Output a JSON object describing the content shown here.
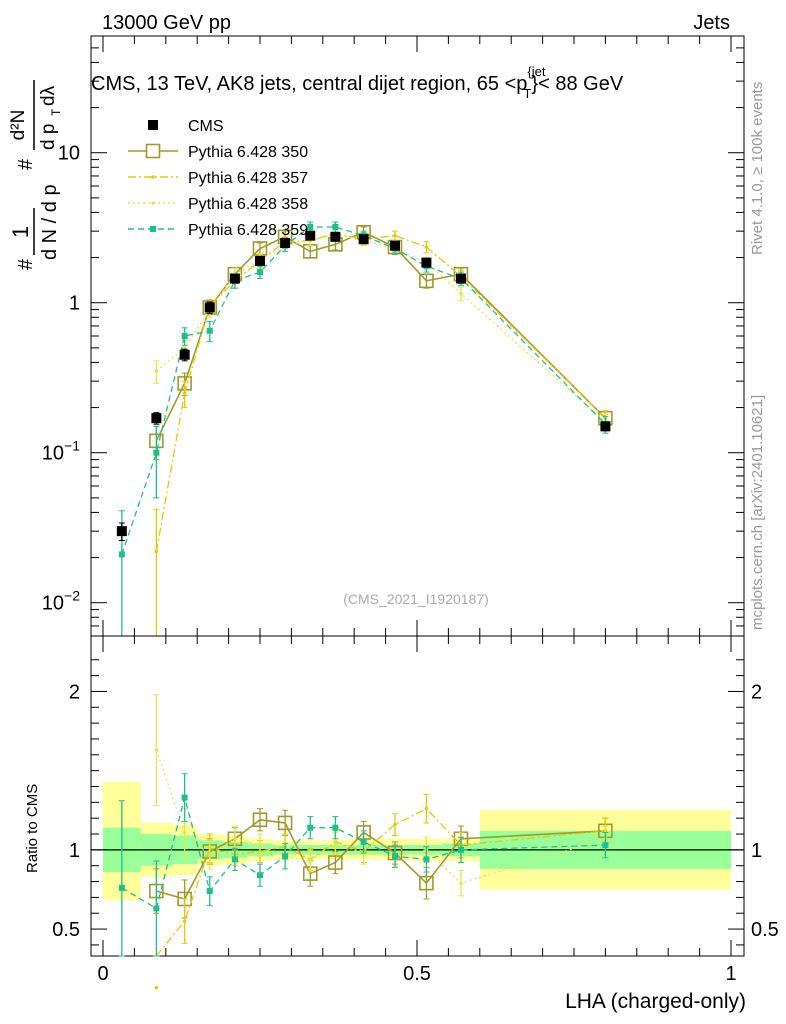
{
  "header": {
    "left": "13000 GeV pp",
    "right": "Jets",
    "title": "CMS, 13 TeV, AK8 jets, central dijet region, 65 <p",
    "title_sup": "{jet",
    "title_sub": "T",
    "title_end": "}< 88 GeV",
    "watermark": "(CMS_2021_I1920187)",
    "side_rivet": "Rivet 4.1.0, ≥ 100k events",
    "side_mcplots": "mcplots.cern.ch [arXiv:2401.10621]"
  },
  "colors": {
    "cms": "#000000",
    "p350": "#a09a2c",
    "p357": "#e8c800",
    "p358": "#e5e54b",
    "p359": "#1ec08a",
    "band_inner": "#99ff99",
    "band_outer": "#ffff99"
  },
  "chart_data": [
    {
      "type": "line",
      "panel": "main",
      "yscale": "log",
      "ylim": [
        0.006,
        60
      ],
      "xlim": [
        0,
        1
      ],
      "ylabel": "1/dN/dp_T  dN/dp_T dλ (d²N / dp_T dλ)",
      "ylabel_parts": {
        "one": "1",
        "num": "d²N",
        "dn": "d N / d p",
        "dp": "d p",
        "dl": "dλ",
        "t": "T",
        "hash": "#"
      },
      "yticks": [
        {
          "value": 0.01,
          "base": "10",
          "exp": "−2"
        },
        {
          "value": 0.1,
          "base": "10",
          "exp": "−1"
        },
        {
          "value": 1,
          "base": "1",
          "exp": ""
        },
        {
          "value": 10,
          "base": "10",
          "exp": ""
        }
      ],
      "x": [
        0.03,
        0.085,
        0.13,
        0.17,
        0.21,
        0.25,
        0.29,
        0.33,
        0.37,
        0.415,
        0.465,
        0.515,
        0.57,
        0.8
      ],
      "series": [
        {
          "name": "CMS",
          "key": "cms",
          "style": "data",
          "values": [
            0.03,
            0.17,
            0.45,
            0.93,
            1.45,
            1.9,
            2.5,
            2.8,
            2.75,
            2.65,
            2.4,
            1.85,
            1.45,
            0.15
          ],
          "errors": [
            0.004,
            0.015,
            0.04,
            0.08,
            0.1,
            0.1,
            0.12,
            0.12,
            0.12,
            0.12,
            0.12,
            0.1,
            0.1,
            0.01
          ]
        },
        {
          "name": "Pythia 6.428 350",
          "key": "p350",
          "style": "solid-square",
          "values": [
            null,
            0.12,
            0.29,
            0.93,
            1.55,
            2.3,
            2.75,
            2.2,
            2.45,
            2.95,
            2.35,
            1.4,
            1.55,
            0.17
          ],
          "errors": [
            null,
            0.03,
            0.05,
            0.1,
            0.15,
            0.2,
            0.25,
            0.2,
            0.2,
            0.25,
            0.2,
            0.15,
            0.15,
            0.02
          ]
        },
        {
          "name": "Pythia 6.428 357",
          "key": "p357",
          "style": "dashdot",
          "values": [
            null,
            0.022,
            0.25,
            0.95,
            1.4,
            1.9,
            2.55,
            2.6,
            2.9,
            2.65,
            2.8,
            2.35,
            1.5,
            0.17
          ],
          "errors": [
            null,
            0.02,
            0.05,
            0.1,
            0.15,
            0.2,
            0.2,
            0.2,
            0.2,
            0.2,
            0.2,
            0.2,
            0.15,
            0.02
          ]
        },
        {
          "name": "Pythia 6.428 358",
          "key": "p358",
          "style": "dotted",
          "values": [
            null,
            0.35,
            0.5,
            0.9,
            1.55,
            1.95,
            2.4,
            2.6,
            2.85,
            2.6,
            2.3,
            1.85,
            1.15,
            0.16
          ],
          "errors": [
            null,
            0.06,
            0.06,
            0.1,
            0.15,
            0.2,
            0.2,
            0.2,
            0.2,
            0.2,
            0.2,
            0.15,
            0.12,
            0.02
          ]
        },
        {
          "name": "Pythia 6.428 359",
          "key": "p359",
          "style": "dashed-square",
          "values": [
            0.021,
            0.1,
            0.6,
            0.65,
            1.4,
            1.6,
            2.4,
            3.2,
            3.2,
            2.8,
            2.3,
            1.75,
            1.45,
            0.155
          ],
          "errors": [
            0.02,
            0.05,
            0.08,
            0.1,
            0.15,
            0.15,
            0.2,
            0.25,
            0.25,
            0.2,
            0.2,
            0.15,
            0.15,
            0.02
          ]
        }
      ]
    },
    {
      "type": "line",
      "panel": "ratio",
      "ylim": [
        0.33,
        2.35
      ],
      "xlim": [
        0,
        1
      ],
      "xlabel": "LHA (charged-only)",
      "ylabel": "Ratio to CMS",
      "yticks": [
        0.5,
        1,
        2
      ],
      "xticks": [
        0,
        0.5,
        1
      ],
      "ytick_labels": [
        "0.5",
        "1",
        "2"
      ],
      "xtick_labels": [
        "0",
        "0.5",
        "1"
      ],
      "bands": [
        {
          "x0": 0.0,
          "x1": 0.06,
          "inner": [
            0.86,
            1.14
          ],
          "outer": [
            0.68,
            1.43
          ]
        },
        {
          "x0": 0.06,
          "x1": 0.11,
          "inner": [
            0.9,
            1.1
          ],
          "outer": [
            0.83,
            1.17
          ]
        },
        {
          "x0": 0.11,
          "x1": 0.15,
          "inner": [
            0.91,
            1.09
          ],
          "outer": [
            0.84,
            1.16
          ]
        },
        {
          "x0": 0.15,
          "x1": 0.19,
          "inner": [
            0.94,
            1.06
          ],
          "outer": [
            0.9,
            1.1
          ]
        },
        {
          "x0": 0.19,
          "x1": 0.23,
          "inner": [
            0.95,
            1.05
          ],
          "outer": [
            0.91,
            1.09
          ]
        },
        {
          "x0": 0.23,
          "x1": 0.27,
          "inner": [
            0.96,
            1.04
          ],
          "outer": [
            0.93,
            1.07
          ]
        },
        {
          "x0": 0.27,
          "x1": 0.31,
          "inner": [
            0.97,
            1.03
          ],
          "outer": [
            0.94,
            1.06
          ]
        },
        {
          "x0": 0.31,
          "x1": 0.35,
          "inner": [
            0.97,
            1.03
          ],
          "outer": [
            0.94,
            1.06
          ]
        },
        {
          "x0": 0.35,
          "x1": 0.39,
          "inner": [
            0.97,
            1.03
          ],
          "outer": [
            0.94,
            1.06
          ]
        },
        {
          "x0": 0.39,
          "x1": 0.44,
          "inner": [
            0.97,
            1.03
          ],
          "outer": [
            0.94,
            1.07
          ]
        },
        {
          "x0": 0.44,
          "x1": 0.49,
          "inner": [
            0.97,
            1.03
          ],
          "outer": [
            0.94,
            1.07
          ]
        },
        {
          "x0": 0.49,
          "x1": 0.54,
          "inner": [
            0.97,
            1.03
          ],
          "outer": [
            0.93,
            1.07
          ]
        },
        {
          "x0": 0.54,
          "x1": 0.6,
          "inner": [
            0.96,
            1.04
          ],
          "outer": [
            0.93,
            1.07
          ]
        },
        {
          "x0": 0.6,
          "x1": 1.0,
          "inner": [
            0.88,
            1.12
          ],
          "outer": [
            0.75,
            1.25
          ]
        }
      ],
      "x": [
        0.03,
        0.085,
        0.13,
        0.17,
        0.21,
        0.25,
        0.29,
        0.33,
        0.37,
        0.415,
        0.465,
        0.515,
        0.57,
        0.8
      ],
      "series": [
        {
          "name": "Pythia 6.428 350",
          "key": "p350",
          "style": "solid-square",
          "values": [
            null,
            0.74,
            0.69,
            0.99,
            1.07,
            1.19,
            1.17,
            0.85,
            0.92,
            1.11,
            0.98,
            0.79,
            1.07,
            1.12
          ],
          "errors": [
            null,
            0.14,
            0.12,
            0.08,
            0.07,
            0.07,
            0.08,
            0.08,
            0.07,
            0.07,
            0.07,
            0.1,
            0.08,
            0.08
          ]
        },
        {
          "name": "Pythia 6.428 357",
          "key": "p357",
          "style": "dashdot",
          "values": [
            null,
            0.13,
            0.55,
            1.01,
            0.97,
            0.99,
            1.02,
            0.94,
            1.05,
            0.99,
            1.16,
            1.26,
            1.03,
            1.12
          ],
          "errors": [
            null,
            0.12,
            0.14,
            0.09,
            0.07,
            0.07,
            0.08,
            0.07,
            0.07,
            0.07,
            0.07,
            0.09,
            0.08,
            0.08
          ]
        },
        {
          "name": "Pythia 6.428 358",
          "key": "p358",
          "style": "dotted",
          "values": [
            null,
            1.63,
            1.11,
            0.97,
            1.07,
            1.03,
            0.96,
            0.93,
            1.04,
            0.98,
            0.96,
            1.0,
            0.79,
            1.07
          ],
          "errors": [
            null,
            0.35,
            0.15,
            0.09,
            0.08,
            0.07,
            0.08,
            0.07,
            0.07,
            0.07,
            0.07,
            0.08,
            0.08,
            0.08
          ]
        },
        {
          "name": "Pythia 6.428 359",
          "key": "p359",
          "style": "dashed-square",
          "values": [
            0.76,
            0.63,
            1.33,
            0.74,
            0.94,
            0.84,
            0.96,
            1.14,
            1.14,
            1.05,
            0.96,
            0.94,
            1.0,
            1.03
          ],
          "errors": [
            0.55,
            0.3,
            0.15,
            0.09,
            0.07,
            0.07,
            0.08,
            0.07,
            0.07,
            0.07,
            0.07,
            0.08,
            0.08,
            0.08
          ]
        }
      ]
    }
  ],
  "legend": [
    {
      "label": "CMS",
      "key": "cms",
      "style": "data"
    },
    {
      "label": "Pythia 6.428 350",
      "key": "p350",
      "style": "solid-square"
    },
    {
      "label": "Pythia 6.428 357",
      "key": "p357",
      "style": "dashdot"
    },
    {
      "label": "Pythia 6.428 358",
      "key": "p358",
      "style": "dotted"
    },
    {
      "label": "Pythia 6.428 359",
      "key": "p359",
      "style": "dashed-square"
    }
  ]
}
